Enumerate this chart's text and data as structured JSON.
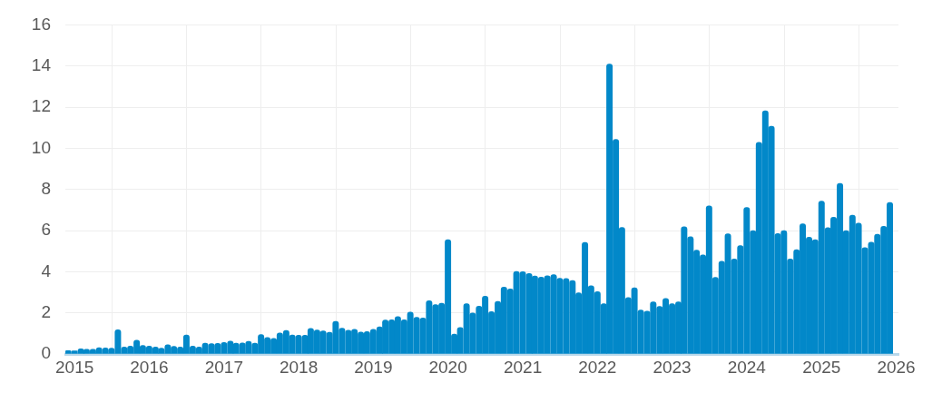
{
  "chart_data": {
    "type": "bar",
    "x": [
      "2014-12",
      "2015-01",
      "2015-02",
      "2015-03",
      "2015-04",
      "2015-05",
      "2015-06",
      "2015-07",
      "2015-08",
      "2015-09",
      "2015-10",
      "2015-11",
      "2015-12",
      "2016-01",
      "2016-02",
      "2016-03",
      "2016-04",
      "2016-05",
      "2016-06",
      "2016-07",
      "2016-08",
      "2016-09",
      "2016-10",
      "2016-11",
      "2016-12",
      "2017-01",
      "2017-02",
      "2017-03",
      "2017-04",
      "2017-05",
      "2017-06",
      "2017-07",
      "2017-08",
      "2017-09",
      "2017-10",
      "2017-11",
      "2017-12",
      "2018-01",
      "2018-02",
      "2018-03",
      "2018-04",
      "2018-05",
      "2018-06",
      "2018-07",
      "2018-08",
      "2018-09",
      "2018-10",
      "2018-11",
      "2018-12",
      "2019-01",
      "2019-02",
      "2019-03",
      "2019-04",
      "2019-05",
      "2019-06",
      "2019-07",
      "2019-08",
      "2019-09",
      "2019-10",
      "2019-11",
      "2019-12",
      "2020-01",
      "2020-02",
      "2020-03",
      "2020-04",
      "2020-05",
      "2020-06",
      "2020-07",
      "2020-08",
      "2020-09",
      "2020-10",
      "2020-11",
      "2020-12",
      "2021-01",
      "2021-02",
      "2021-03",
      "2021-04",
      "2021-05",
      "2021-06",
      "2021-07",
      "2021-08",
      "2021-09",
      "2021-10",
      "2021-11",
      "2021-12",
      "2022-01",
      "2022-02",
      "2022-03",
      "2022-04",
      "2022-05",
      "2022-06",
      "2022-07",
      "2022-08",
      "2022-09",
      "2022-10",
      "2022-11",
      "2022-12",
      "2023-01",
      "2023-02",
      "2023-03",
      "2023-04",
      "2023-05",
      "2023-06",
      "2023-07",
      "2023-08",
      "2023-09",
      "2023-10",
      "2023-11",
      "2023-12",
      "2024-01",
      "2024-02",
      "2024-03",
      "2024-04",
      "2024-05",
      "2024-06",
      "2024-07",
      "2024-08",
      "2024-09",
      "2024-10",
      "2024-11",
      "2024-12",
      "2025-01",
      "2025-02",
      "2025-03",
      "2025-04",
      "2025-05",
      "2025-06",
      "2025-07",
      "2025-08",
      "2025-09",
      "2025-10",
      "2025-11",
      "2025-12"
    ],
    "values": [
      0.16,
      0.15,
      0.25,
      0.23,
      0.23,
      0.3,
      0.29,
      0.28,
      1.18,
      0.34,
      0.38,
      0.67,
      0.42,
      0.38,
      0.34,
      0.28,
      0.45,
      0.37,
      0.34,
      0.92,
      0.38,
      0.34,
      0.53,
      0.5,
      0.51,
      0.56,
      0.63,
      0.53,
      0.54,
      0.61,
      0.53,
      0.94,
      0.8,
      0.76,
      1.02,
      1.14,
      0.92,
      0.91,
      0.91,
      1.24,
      1.17,
      1.12,
      1.06,
      1.59,
      1.25,
      1.16,
      1.2,
      1.07,
      1.09,
      1.2,
      1.32,
      1.65,
      1.66,
      1.82,
      1.66,
      2.04,
      1.78,
      1.75,
      2.59,
      2.4,
      2.47,
      5.56,
      0.97,
      1.29,
      2.44,
      1.99,
      2.32,
      2.81,
      2.06,
      2.56,
      3.25,
      3.16,
      4.01,
      4.0,
      3.91,
      3.79,
      3.74,
      3.8,
      3.86,
      3.68,
      3.67,
      3.57,
      2.97,
      5.42,
      3.32,
      3.03,
      2.45,
      14.1,
      10.43,
      6.15,
      2.74,
      3.22,
      2.14,
      2.08,
      2.53,
      2.31,
      2.7,
      2.45,
      2.53,
      6.18,
      5.7,
      5.05,
      4.82,
      7.2,
      3.73,
      4.51,
      5.84,
      4.62,
      5.27,
      7.12,
      6.0,
      10.29,
      11.82,
      11.07,
      5.85,
      6.0,
      4.62,
      5.07,
      6.33,
      5.68,
      5.56,
      7.43,
      6.14,
      6.65,
      8.29,
      6.0,
      6.75,
      6.36,
      5.17,
      5.43,
      5.82,
      6.21,
      7.37
    ],
    "color": "#0288c9",
    "xlim": [
      "2014-11-17",
      "2026-01-12"
    ],
    "xticks": [
      "2015",
      "2016",
      "2017",
      "2018",
      "2019",
      "2020",
      "2021",
      "2022",
      "2023",
      "2024",
      "2025",
      "2026"
    ],
    "ylim": [
      0,
      16
    ],
    "yticks": [
      0,
      2,
      4,
      6,
      8,
      10,
      12,
      14,
      16
    ],
    "grid": true,
    "legend": false
  }
}
